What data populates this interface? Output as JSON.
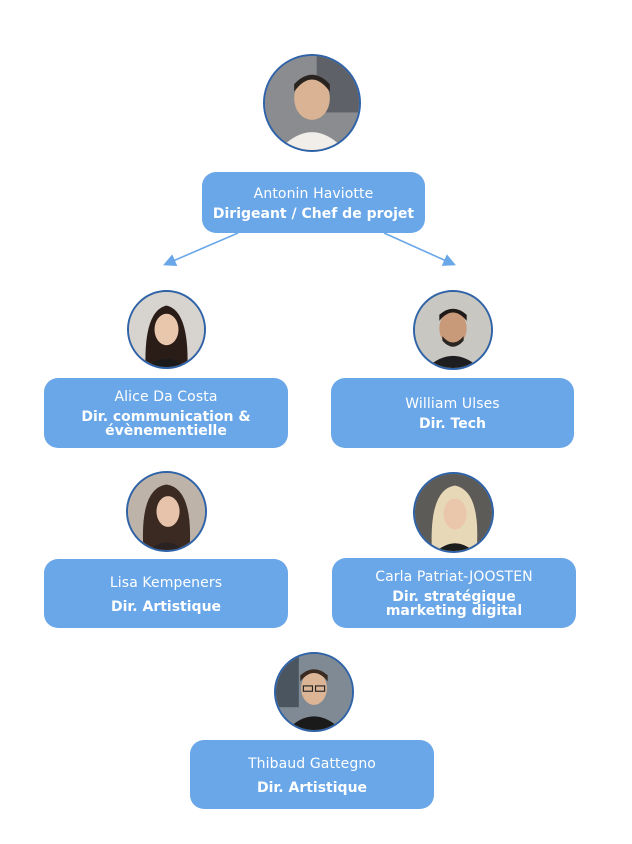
{
  "colors": {
    "card_bg": "#6aa7e8",
    "avatar_border": "#2f63a8",
    "arrow": "#6aa7e8",
    "text": "#ffffff"
  },
  "people": [
    {
      "id": "antonin",
      "name": "Antonin Haviotte",
      "role": "Dirigeant / Chef de projet"
    },
    {
      "id": "alice",
      "name": "Alice Da Costa",
      "role_lines": [
        "Dir. communication &",
        "évènementielle"
      ]
    },
    {
      "id": "william",
      "name": "William Ulses",
      "role": "Dir. Tech"
    },
    {
      "id": "lisa",
      "name": "Lisa Kempeners",
      "role": "Dir. Artistique"
    },
    {
      "id": "carla",
      "name": "Carla Patriat-JOOSTEN",
      "role_lines": [
        "Dir. stratégique",
        "marketing digital"
      ]
    },
    {
      "id": "thibaud",
      "name": "Thibaud Gattegno",
      "role": "Dir. Artistique"
    }
  ]
}
